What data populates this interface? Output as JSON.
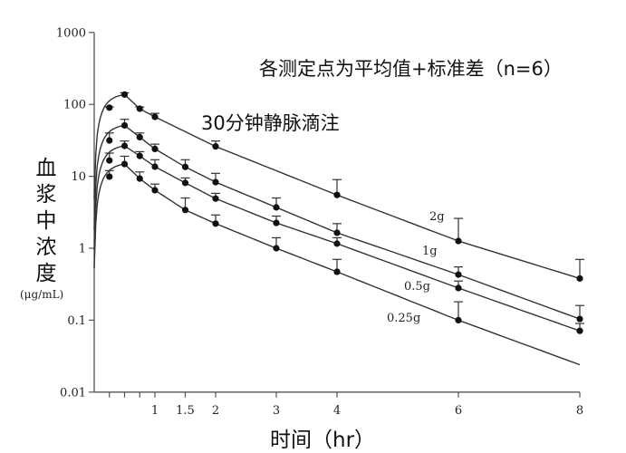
{
  "chart_data": {
    "type": "line",
    "scale": {
      "y": "log"
    },
    "title": "",
    "xlabel": "时间（hr）",
    "ylabel": "血浆中浓度",
    "ylabel_unit": "(μg/mL)",
    "xlim": [
      0,
      8
    ],
    "ylim": [
      0.01,
      1000
    ],
    "x_ticks": [
      0.25,
      0.5,
      0.75,
      1,
      1.5,
      2,
      3,
      4,
      6,
      8
    ],
    "x_tick_labels": [
      "",
      "",
      "",
      "1",
      "1.5",
      "2",
      "3",
      "4",
      "6",
      "8"
    ],
    "y_ticks": [
      0.01,
      0.1,
      1,
      10,
      100,
      1000
    ],
    "y_tick_labels": [
      "0.01",
      "0.1",
      "1",
      "10",
      "100",
      "1000"
    ],
    "grid": false,
    "annotations": [
      "各测定点为平均值+标准差（n=6）",
      "30分钟静脉滴注"
    ],
    "error_bars": "mean + SD (upper only)",
    "series": [
      {
        "name": "2g",
        "x": [
          0.25,
          0.5,
          0.75,
          1,
          2,
          4,
          6,
          8
        ],
        "values": [
          90,
          137,
          87,
          67,
          26,
          5.5,
          1.26,
          0.38
        ],
        "sd_upper": [
          92,
          145,
          92,
          75,
          31,
          9,
          2.6,
          0.7
        ]
      },
      {
        "name": "1g",
        "x": [
          0.25,
          0.5,
          0.75,
          1,
          1.5,
          2,
          3,
          4,
          6,
          8
        ],
        "values": [
          31.5,
          51,
          35,
          24,
          13.5,
          8.3,
          3.7,
          1.64,
          0.43,
          0.104
        ],
        "sd_upper": [
          40,
          62,
          40,
          28,
          17,
          11,
          5,
          2.2,
          0.55,
          0.16
        ]
      },
      {
        "name": "0.5g",
        "x": [
          0.25,
          0.5,
          0.75,
          1,
          1.5,
          2,
          3,
          4,
          6,
          8
        ],
        "values": [
          16.6,
          26.5,
          19.2,
          13.6,
          8.1,
          4.9,
          2.25,
          1.16,
          0.28,
          0.071
        ],
        "sd_upper": [
          21,
          31,
          22,
          17,
          9.5,
          5.8,
          2.8,
          1.4,
          0.35,
          0.09
        ]
      },
      {
        "name": "0.25g",
        "x": [
          0.25,
          0.5,
          0.75,
          1,
          1.5,
          2,
          3,
          4,
          6
        ],
        "values": [
          9.9,
          14.8,
          9.3,
          6.4,
          3.4,
          2.2,
          1.0,
          0.47,
          0.1
        ],
        "sd_upper": [
          12,
          19,
          11.5,
          7.8,
          5,
          2.9,
          1.4,
          0.7,
          0.18
        ]
      }
    ]
  },
  "labels": {
    "annotation_top": "各测定点为平均值+标准差（n=6）",
    "annotation_infusion": "30分钟静脉滴注",
    "y_axis_chars": [
      "血",
      "浆",
      "中",
      "浓",
      "度"
    ],
    "y_axis_unit": "(μg/mL)",
    "x_axis_title": "时间（hr）"
  }
}
